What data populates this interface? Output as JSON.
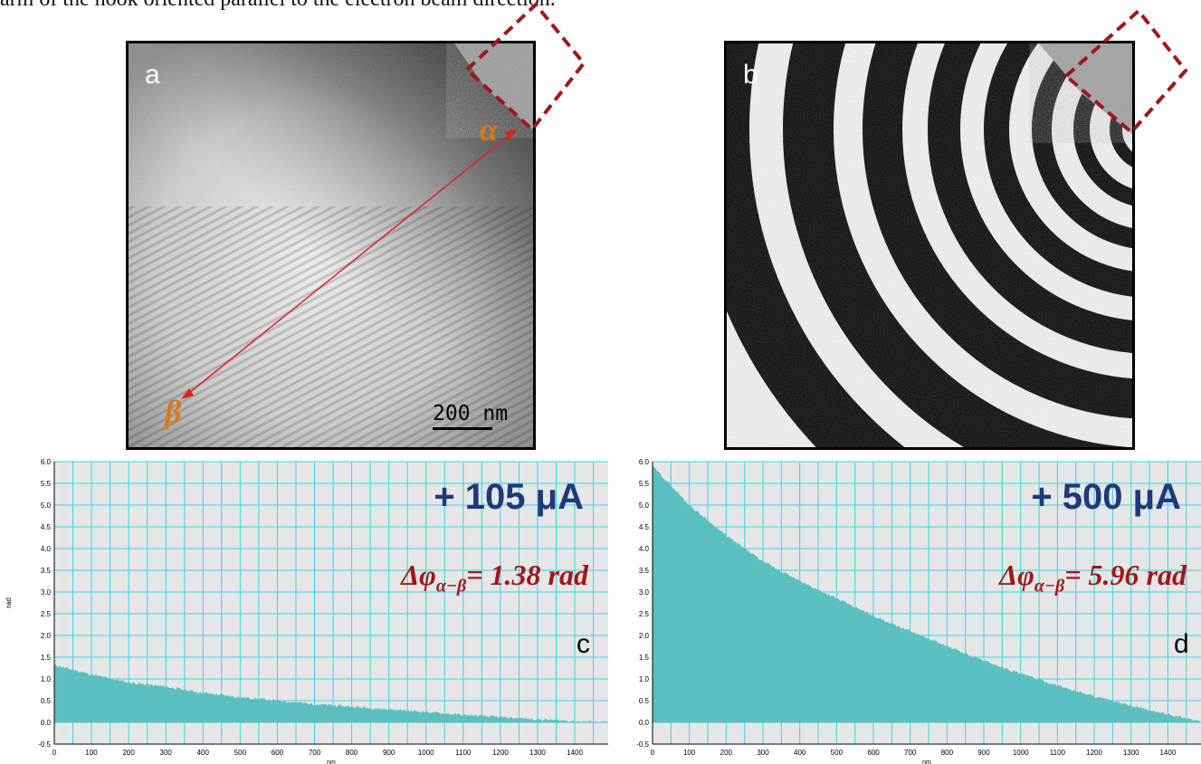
{
  "caption": "arm of the hook oriented parallel to the electron beam direction.",
  "panels": {
    "a": {
      "label": "a",
      "marker_top": "α",
      "marker_bottom": "β",
      "scalebar": "200 nm"
    },
    "b": {
      "label": "b"
    },
    "c": {
      "label": "c",
      "current": "+ 105 μA",
      "phase_prefix": "Δφ",
      "phase_sub": "α−β",
      "phase_value": "= 1.38 rad"
    },
    "d": {
      "label": "d",
      "current": "+ 500 μA",
      "phase_prefix": "Δφ",
      "phase_sub": "α−β",
      "phase_value": "= 5.96 rad"
    }
  },
  "colors": {
    "fill": "#5bbfbf",
    "grid": "#33d6e6",
    "plot_bg": "#e6e6e6",
    "annot_current": "#1f3a7a",
    "annot_phase": "#a01818",
    "marker": "#d07a1a",
    "arrow": "#e02020",
    "dashbox": "#a01818"
  },
  "chart_data": [
    {
      "type": "area",
      "panel": "c",
      "xlabel": "nm",
      "ylabel": "rad",
      "xlim": [
        0,
        1490
      ],
      "ylim": [
        -0.5,
        6.0
      ],
      "xticks": [
        0,
        100,
        200,
        300,
        400,
        500,
        600,
        700,
        800,
        900,
        1000,
        1100,
        1200,
        1300,
        1400
      ],
      "yticks": [
        -0.5,
        0.0,
        0.5,
        1.0,
        1.5,
        2.0,
        2.5,
        3.0,
        3.5,
        4.0,
        4.5,
        5.0,
        5.5,
        6.0
      ],
      "x": [
        0,
        100,
        200,
        300,
        400,
        500,
        600,
        700,
        800,
        900,
        1000,
        1100,
        1200,
        1300,
        1400,
        1490
      ],
      "y": [
        1.32,
        1.1,
        0.92,
        0.82,
        0.68,
        0.58,
        0.5,
        0.42,
        0.36,
        0.3,
        0.24,
        0.17,
        0.12,
        0.07,
        0.03,
        0.0
      ]
    },
    {
      "type": "area",
      "panel": "d",
      "xlabel": "nm",
      "ylabel": "",
      "xlim": [
        0,
        1490
      ],
      "ylim": [
        -0.5,
        6.0
      ],
      "xticks": [
        0,
        100,
        200,
        300,
        400,
        500,
        600,
        700,
        800,
        900,
        1000,
        1100,
        1200,
        1300,
        1400
      ],
      "yticks": [
        -0.5,
        0.0,
        0.5,
        1.0,
        1.5,
        2.0,
        2.5,
        3.0,
        3.5,
        4.0,
        4.5,
        5.0,
        5.5,
        6.0
      ],
      "x": [
        0,
        100,
        200,
        300,
        400,
        500,
        600,
        700,
        800,
        900,
        1000,
        1100,
        1200,
        1300,
        1400,
        1490
      ],
      "y": [
        5.9,
        5.0,
        4.3,
        3.7,
        3.25,
        2.85,
        2.45,
        2.1,
        1.75,
        1.42,
        1.12,
        0.85,
        0.6,
        0.38,
        0.18,
        0.02
      ]
    }
  ]
}
